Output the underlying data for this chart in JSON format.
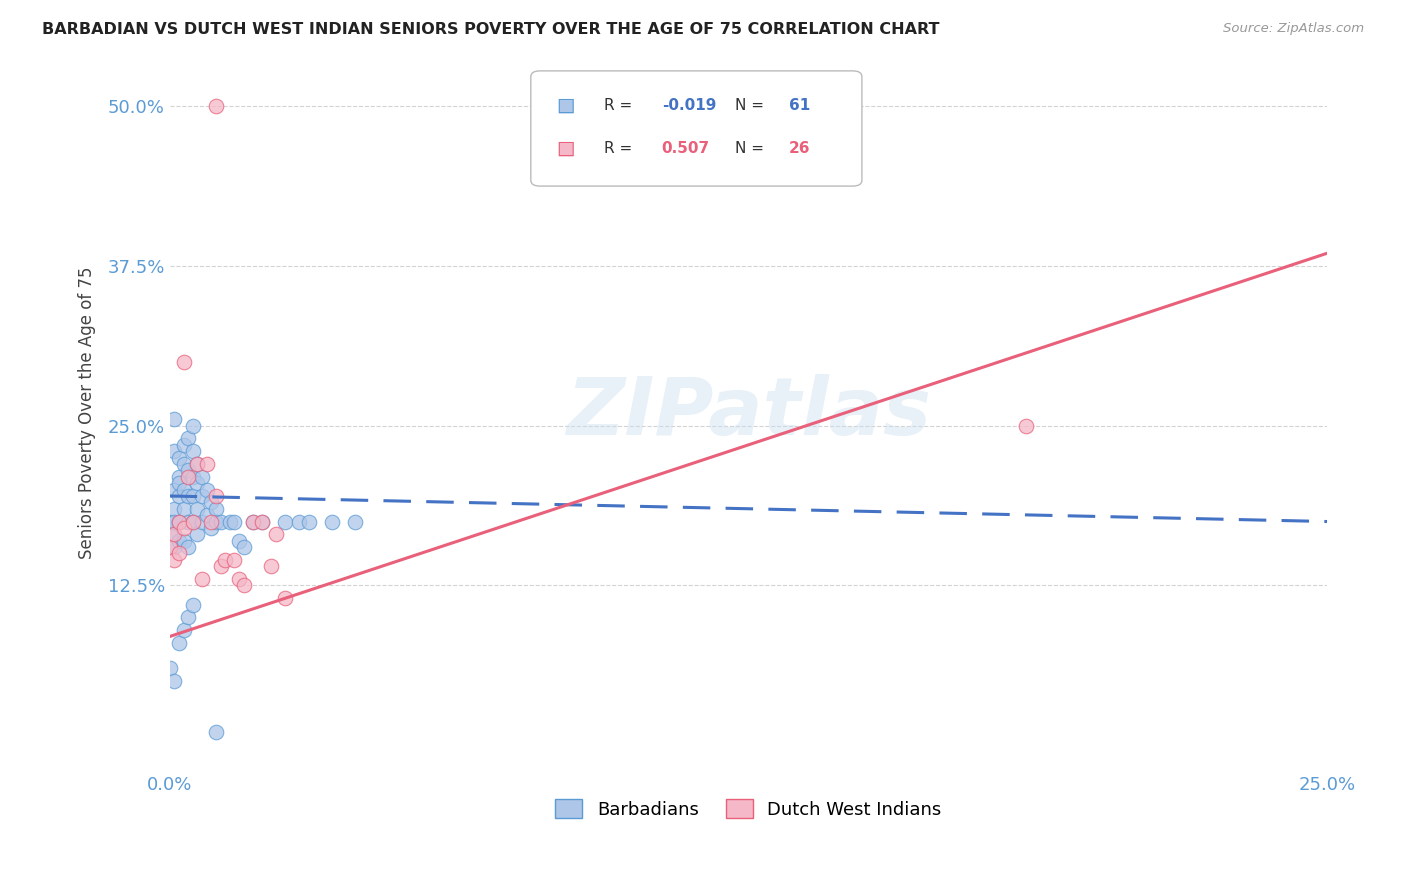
{
  "title": "BARBADIAN VS DUTCH WEST INDIAN SENIORS POVERTY OVER THE AGE OF 75 CORRELATION CHART",
  "source": "Source: ZipAtlas.com",
  "ylabel": "Seniors Poverty Over the Age of 75",
  "xlim": [
    0.0,
    0.25
  ],
  "ylim": [
    -0.02,
    0.54
  ],
  "xtick_positions": [
    0.0,
    0.05,
    0.1,
    0.15,
    0.2,
    0.25
  ],
  "xtick_labels": [
    "0.0%",
    "",
    "",
    "",
    "",
    "25.0%"
  ],
  "ytick_positions": [
    0.125,
    0.25,
    0.375,
    0.5
  ],
  "ytick_labels": [
    "12.5%",
    "25.0%",
    "37.5%",
    "50.0%"
  ],
  "barbadian_fill": "#aec6e8",
  "barbadian_edge": "#5b9bd5",
  "dutch_fill": "#f4b8c8",
  "dutch_edge": "#e8607a",
  "barbadian_line_color": "#4472c4",
  "dutch_line_color": "#e8607a",
  "watermark": "ZIPatlas",
  "background_color": "#ffffff",
  "grid_color": "#d3d3d3",
  "tick_color": "#5b9bd5",
  "barbadian_R": "-0.019",
  "barbadian_N": "61",
  "dutch_R": "0.507",
  "dutch_N": "26",
  "barbadian_x": [
    0.0,
    0.0,
    0.001,
    0.001,
    0.001,
    0.001,
    0.001,
    0.001,
    0.002,
    0.002,
    0.002,
    0.002,
    0.002,
    0.002,
    0.003,
    0.003,
    0.003,
    0.003,
    0.003,
    0.004,
    0.004,
    0.004,
    0.004,
    0.004,
    0.005,
    0.005,
    0.005,
    0.005,
    0.005,
    0.006,
    0.006,
    0.006,
    0.006,
    0.007,
    0.007,
    0.007,
    0.008,
    0.008,
    0.009,
    0.009,
    0.01,
    0.01,
    0.011,
    0.013,
    0.014,
    0.015,
    0.016,
    0.018,
    0.02,
    0.025,
    0.028,
    0.03,
    0.035,
    0.04,
    0.0,
    0.001,
    0.002,
    0.003,
    0.004,
    0.005,
    0.01
  ],
  "barbadian_y": [
    0.175,
    0.165,
    0.185,
    0.2,
    0.23,
    0.255,
    0.175,
    0.155,
    0.195,
    0.21,
    0.225,
    0.205,
    0.175,
    0.16,
    0.22,
    0.235,
    0.2,
    0.185,
    0.16,
    0.24,
    0.215,
    0.195,
    0.175,
    0.155,
    0.25,
    0.23,
    0.21,
    0.195,
    0.175,
    0.22,
    0.205,
    0.185,
    0.165,
    0.21,
    0.195,
    0.175,
    0.2,
    0.18,
    0.19,
    0.17,
    0.185,
    0.175,
    0.175,
    0.175,
    0.175,
    0.16,
    0.155,
    0.175,
    0.175,
    0.175,
    0.175,
    0.175,
    0.175,
    0.175,
    0.06,
    0.05,
    0.08,
    0.09,
    0.1,
    0.11,
    0.01
  ],
  "dutch_x": [
    0.0,
    0.001,
    0.001,
    0.002,
    0.002,
    0.003,
    0.003,
    0.004,
    0.005,
    0.006,
    0.007,
    0.008,
    0.009,
    0.01,
    0.011,
    0.012,
    0.014,
    0.015,
    0.016,
    0.018,
    0.02,
    0.022,
    0.023,
    0.025,
    0.185,
    0.01
  ],
  "dutch_y": [
    0.155,
    0.165,
    0.145,
    0.175,
    0.15,
    0.3,
    0.17,
    0.21,
    0.175,
    0.22,
    0.13,
    0.22,
    0.175,
    0.195,
    0.14,
    0.145,
    0.145,
    0.13,
    0.125,
    0.175,
    0.175,
    0.14,
    0.165,
    0.115,
    0.25,
    0.5
  ],
  "barb_line_x0": 0.0,
  "barb_line_x1": 0.25,
  "barb_line_y0": 0.195,
  "barb_line_y1": 0.175,
  "dutch_line_x0": 0.0,
  "dutch_line_x1": 0.25,
  "dutch_line_y0": 0.085,
  "dutch_line_y1": 0.385
}
